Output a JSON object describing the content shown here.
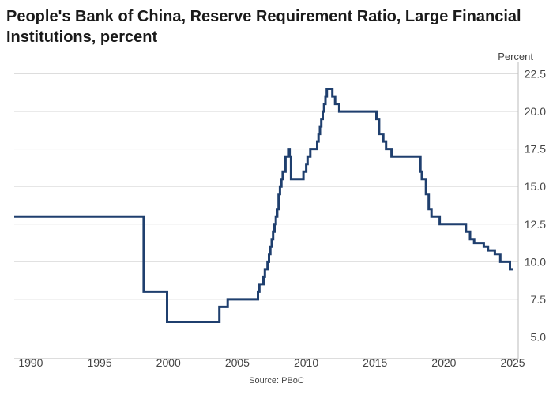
{
  "title": "People's Bank of China, Reserve Requirement Ratio, Large Financial Institutions, percent",
  "source": "Source: PBoC",
  "colors": {
    "line": "#1f3f6e",
    "grid": "#dddddd",
    "axis": "#bbbbbb",
    "text": "#444444"
  },
  "chart_data": {
    "type": "line",
    "title": "People's Bank of China, Reserve Requirement Ratio, Large Financial Institutions, percent",
    "xlabel": "",
    "ylabel": "Percent",
    "xlim": [
      1988.8,
      2025.4
    ],
    "ylim": [
      4.5,
      23.0
    ],
    "grid": true,
    "y_axis_side": "right",
    "x_ticks": [
      1990,
      1995,
      2000,
      2005,
      2010,
      2015,
      2020,
      2025
    ],
    "y_ticks": [
      5.0,
      7.5,
      10.0,
      12.5,
      15.0,
      17.5,
      20.0,
      22.5
    ],
    "series": [
      {
        "step": true,
        "x": [
          1988.8,
          1998.2,
          1999.9,
          2003.7,
          2004.3,
          2006.5,
          2006.6,
          2006.9,
          2007.0,
          2007.2,
          2007.3,
          2007.4,
          2007.5,
          2007.6,
          2007.7,
          2007.8,
          2007.9,
          2008.0,
          2008.1,
          2008.2,
          2008.3,
          2008.5,
          2008.7,
          2008.8,
          2008.9,
          2009.8,
          2010.0,
          2010.1,
          2010.3,
          2010.8,
          2010.9,
          2011.0,
          2011.1,
          2011.2,
          2011.3,
          2011.4,
          2011.5,
          2011.9,
          2012.1,
          2012.4,
          2015.1,
          2015.3,
          2015.6,
          2015.8,
          2016.2,
          2018.3,
          2018.4,
          2018.7,
          2018.9,
          2019.1,
          2019.7,
          2019.9,
          2021.6,
          2021.9,
          2022.2,
          2022.9,
          2023.2,
          2023.7,
          2024.1,
          2024.8
        ],
        "y": [
          13.0,
          8.0,
          6.0,
          7.0,
          7.5,
          8.0,
          8.5,
          9.0,
          9.5,
          10.0,
          10.5,
          11.0,
          11.5,
          12.0,
          12.5,
          13.0,
          13.5,
          14.5,
          15.0,
          15.5,
          16.0,
          17.0,
          17.5,
          17.0,
          15.5,
          16.0,
          16.5,
          17.0,
          17.5,
          18.0,
          18.5,
          19.0,
          19.5,
          20.0,
          20.5,
          21.0,
          21.5,
          21.0,
          20.5,
          20.0,
          19.5,
          18.5,
          18.0,
          17.5,
          17.0,
          16.0,
          15.5,
          14.5,
          13.5,
          13.0,
          12.5,
          12.5,
          12.0,
          11.5,
          11.25,
          11.0,
          10.75,
          10.5,
          10.0,
          9.5
        ]
      }
    ]
  }
}
